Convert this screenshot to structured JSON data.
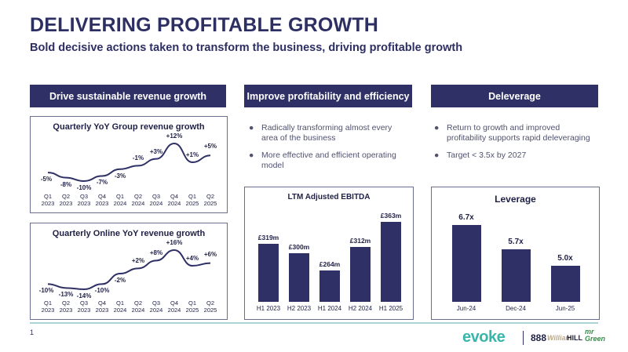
{
  "slide": {
    "title": "DELIVERING PROFITABLE GROWTH",
    "subtitle": "Bold decisive actions taken to transform the business, driving profitable growth",
    "page_number": "1"
  },
  "columns": {
    "revenue": "Drive sustainable revenue growth",
    "profitability": "Improve profitability and efficiency",
    "deleverage": "Deleverage"
  },
  "bullets": {
    "profitability": [
      "Radically transforming almost every area of the business",
      "More effective and efficient operating model"
    ],
    "deleverage": [
      "Return to growth and improved profitability supports rapid deleveraging",
      "Target < 3.5x by 2027"
    ]
  },
  "chart_data": [
    {
      "type": "line",
      "title": "Quarterly YoY Group revenue growth",
      "categories": [
        "Q1 2023",
        "Q2 2023",
        "Q3 2023",
        "Q4 2023",
        "Q1 2024",
        "Q2 2024",
        "Q3 2024",
        "Q4 2024",
        "Q1 2025",
        "Q2 2025"
      ],
      "cat_top": [
        "Q1",
        "Q2",
        "Q3",
        "Q4",
        "Q1",
        "Q2",
        "Q3",
        "Q4",
        "Q1",
        "Q2"
      ],
      "cat_bottom": [
        "2023",
        "2023",
        "2023",
        "2023",
        "2024",
        "2024",
        "2024",
        "2024",
        "2025",
        "2025"
      ],
      "values": [
        -5,
        -8,
        -10,
        -7,
        -3,
        -1,
        3,
        12,
        1,
        5
      ],
      "labels": [
        "-5%",
        "-8%",
        "-10%",
        "-7%",
        "-3%",
        "-1%",
        "+3%",
        "+12%",
        "+1%",
        "+5%"
      ],
      "unit": "%"
    },
    {
      "type": "line",
      "title": "Quarterly Online YoY revenue growth",
      "categories": [
        "Q1 2023",
        "Q2 2023",
        "Q3 2023",
        "Q4 2023",
        "Q1 2024",
        "Q2 2024",
        "Q3 2024",
        "Q4 2024",
        "Q1 2025",
        "Q2 2025"
      ],
      "cat_top": [
        "Q1",
        "Q2",
        "Q3",
        "Q4",
        "Q1",
        "Q2",
        "Q3",
        "Q4",
        "Q1",
        "Q2"
      ],
      "cat_bottom": [
        "2023",
        "2023",
        "2023",
        "2023",
        "2024",
        "2024",
        "2024",
        "2024",
        "2025",
        "2025"
      ],
      "values": [
        -10,
        -13,
        -14,
        -10,
        -2,
        2,
        8,
        16,
        4,
        6
      ],
      "labels": [
        "-10%",
        "-13%",
        "-14%",
        "-10%",
        "-2%",
        "+2%",
        "+8%",
        "+16%",
        "+4%",
        "+6%"
      ],
      "unit": "%"
    },
    {
      "type": "bar",
      "title": "LTM Adjusted EBITDA",
      "categories": [
        "H1 2023",
        "H2 2023",
        "H1 2024",
        "H2 2024",
        "H1 2025"
      ],
      "values": [
        319,
        300,
        264,
        312,
        363
      ],
      "labels": [
        "£319m",
        "£300m",
        "£264m",
        "£312m",
        "£363m"
      ],
      "unit": "£m",
      "ylim": [
        200,
        370
      ]
    },
    {
      "type": "bar",
      "title": "Leverage",
      "categories": [
        "Jun-24",
        "Dec-24",
        "Jun-25"
      ],
      "values": [
        6.7,
        5.7,
        5.0
      ],
      "labels": [
        "6.7x",
        "5.7x",
        "5.0x"
      ],
      "unit": "x",
      "ylim": [
        3.5,
        6.9
      ]
    }
  ],
  "footer": {
    "logo_evoke": "evoke",
    "logo_888": "888",
    "logo_william": "William",
    "logo_hill": "HILL",
    "logo_mr": "mr",
    "logo_green": "Green"
  },
  "colors": {
    "navy": "#2f3166",
    "teal": "#39b6a9",
    "line": "#2f3166"
  }
}
